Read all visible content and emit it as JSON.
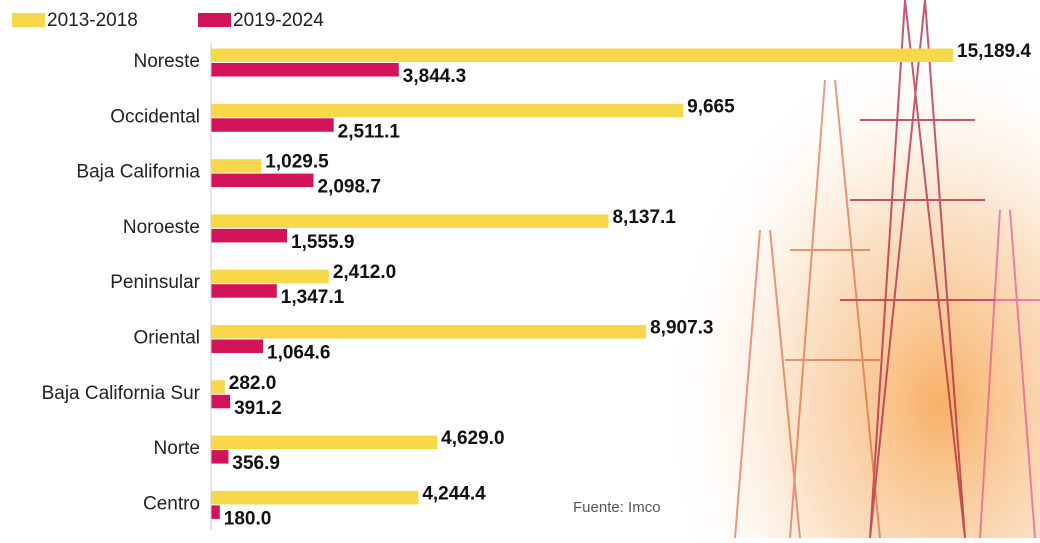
{
  "chart_data": {
    "type": "bar",
    "categories": [
      "Noreste",
      "Occidental",
      "Baja California",
      "Noroeste",
      "Peninsular",
      "Oriental",
      "Baja California Sur",
      "Norte",
      "Centro"
    ],
    "series": [
      {
        "name": "2013-2018",
        "color": "#f7d84b",
        "values": [
          15189.4,
          9665,
          1029.5,
          8137.1,
          2412.0,
          8907.3,
          282.0,
          4629.0,
          4244.4
        ],
        "value_labels": [
          "15,189.4",
          "9,665",
          "1,029.5",
          "8,137.1",
          "2,412.0",
          "8,907.3",
          "282.0",
          "4,629.0",
          "4,244.4"
        ]
      },
      {
        "name": "2019-2024",
        "color": "#d3145b",
        "values": [
          3844.3,
          2511.1,
          2098.7,
          1555.9,
          1347.1,
          1064.6,
          391.2,
          356.9,
          180.0
        ],
        "value_labels": [
          "3,844.3",
          "2,511.1",
          "2,098.7",
          "1,555.9",
          "1,347.1",
          "1,064.6",
          "391.2",
          "356.9",
          "180.0"
        ]
      }
    ],
    "source": "Fuente: Imco"
  }
}
